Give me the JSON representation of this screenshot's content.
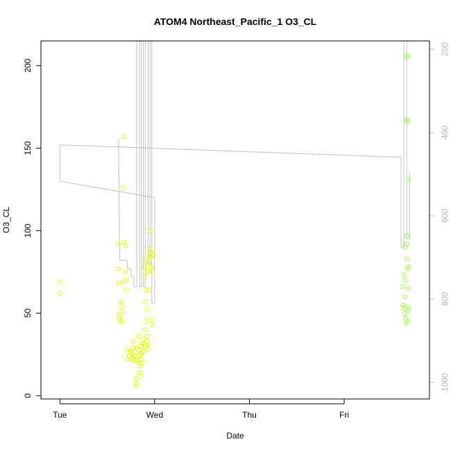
{
  "chart_data": {
    "type": "scatter",
    "title": "ATOM4 Northeast_Pacific_1 O3_CL",
    "xlabel": "Date",
    "ylabel": "O3_CL",
    "x_ticks": [
      "Tue",
      "Wed",
      "Thu",
      "Fri"
    ],
    "y_ticks": [
      "0",
      "50",
      "100",
      "150",
      "200"
    ],
    "y2_ticks": [
      "200",
      "400",
      "600",
      "800",
      "1000"
    ],
    "xlim": [
      -0.2,
      3.9
    ],
    "ylim": [
      -2,
      215
    ],
    "y2lim_reversed": [
      180,
      1040
    ],
    "grid": false,
    "colors": {
      "marker_yellow": "#e0ff00",
      "marker_lime": "#99ff33",
      "line": "#c0c0c0",
      "axis": "#000000",
      "right_axis": "#b5b5b5"
    },
    "series": [
      {
        "color": "#e0ff00",
        "points": [
          [
            0.0,
            69
          ],
          [
            0.0,
            62
          ],
          [
            0.62,
            92
          ],
          [
            0.62,
            77
          ],
          [
            0.62,
            68
          ],
          [
            0.63,
            49
          ],
          [
            0.63,
            47
          ],
          [
            0.64,
            45
          ],
          [
            0.65,
            57
          ],
          [
            0.65,
            54
          ],
          [
            0.66,
            51
          ],
          [
            0.66,
            45
          ],
          [
            0.67,
            126
          ],
          [
            0.67,
            69
          ],
          [
            0.68,
            157
          ],
          [
            0.68,
            93
          ],
          [
            0.69,
            91
          ],
          [
            0.69,
            75
          ],
          [
            0.7,
            70
          ],
          [
            0.7,
            64
          ],
          [
            0.71,
            28
          ],
          [
            0.72,
            22
          ],
          [
            0.73,
            24
          ],
          [
            0.74,
            27
          ],
          [
            0.75,
            26
          ],
          [
            0.76,
            22
          ],
          [
            0.77,
            25
          ],
          [
            0.78,
            29
          ],
          [
            0.78,
            33
          ],
          [
            0.79,
            24
          ],
          [
            0.8,
            6
          ],
          [
            0.8,
            10
          ],
          [
            0.81,
            7
          ],
          [
            0.82,
            21
          ],
          [
            0.82,
            28
          ],
          [
            0.83,
            36
          ],
          [
            0.84,
            20
          ],
          [
            0.84,
            14
          ],
          [
            0.85,
            12
          ],
          [
            0.85,
            25
          ],
          [
            0.86,
            30
          ],
          [
            0.86,
            22
          ],
          [
            0.87,
            20
          ],
          [
            0.87,
            32
          ],
          [
            0.88,
            34
          ],
          [
            0.88,
            27
          ],
          [
            0.89,
            31
          ],
          [
            0.89,
            78
          ],
          [
            0.9,
            82
          ],
          [
            0.9,
            72
          ],
          [
            0.9,
            57
          ],
          [
            0.91,
            64
          ],
          [
            0.91,
            30
          ],
          [
            0.92,
            75
          ],
          [
            0.92,
            33
          ],
          [
            0.93,
            76
          ],
          [
            0.93,
            28
          ],
          [
            0.94,
            80
          ],
          [
            0.94,
            85
          ],
          [
            0.94,
            64
          ],
          [
            0.95,
            100
          ],
          [
            0.95,
            89
          ],
          [
            0.96,
            87
          ],
          [
            0.96,
            84
          ],
          [
            0.97,
            78
          ],
          [
            0.97,
            46
          ],
          [
            0.98,
            43
          ],
          [
            0.98,
            75
          ],
          [
            0.99,
            85
          ],
          [
            0.92,
            52
          ],
          [
            0.9,
            40
          ],
          [
            0.87,
            26
          ],
          [
            0.85,
            18
          ],
          [
            0.83,
            24
          ],
          [
            0.81,
            29
          ],
          [
            0.79,
            21
          ],
          [
            0.77,
            23
          ],
          [
            0.93,
            31
          ],
          [
            0.92,
            36
          ],
          [
            0.91,
            45
          ]
        ]
      },
      {
        "color": "#99ff33",
        "points": [
          [
            3.62,
            66
          ],
          [
            3.62,
            55
          ],
          [
            3.63,
            53
          ],
          [
            3.63,
            73
          ],
          [
            3.64,
            60
          ],
          [
            3.64,
            50
          ],
          [
            3.65,
            47
          ],
          [
            3.65,
            44
          ],
          [
            3.65,
            70
          ],
          [
            3.66,
            92
          ],
          [
            3.66,
            97
          ],
          [
            3.66,
            83
          ],
          [
            3.67,
            77
          ],
          [
            3.67,
            54
          ],
          [
            3.67,
            45
          ],
          [
            3.68,
            78
          ],
          [
            3.68,
            65
          ],
          [
            3.68,
            52
          ],
          [
            3.66,
            206
          ],
          [
            3.67,
            205
          ],
          [
            3.66,
            167
          ],
          [
            3.67,
            166
          ],
          [
            3.68,
            131
          ],
          [
            3.64,
            90
          ]
        ]
      }
    ],
    "line_series": {
      "color": "#c0c0c0",
      "points": [
        [
          0.0,
          130
        ],
        [
          0.0,
          152
        ],
        [
          3.6,
          144.5
        ],
        [
          3.6,
          90
        ],
        [
          3.63,
          90
        ],
        [
          3.63,
          230
        ],
        [
          3.66,
          230
        ],
        [
          3.66,
          95
        ],
        [
          3.69,
          95
        ],
        [
          3.69,
          135
        ]
      ]
    },
    "line_series_2": {
      "color": "#c0c0c0",
      "points": [
        [
          0.0,
          130
        ],
        [
          1.0,
          120
        ],
        [
          1.0,
          56
        ],
        [
          0.97,
          56
        ],
        [
          0.97,
          230
        ],
        [
          0.95,
          230
        ],
        [
          0.95,
          80
        ],
        [
          0.93,
          80
        ],
        [
          0.93,
          230
        ],
        [
          0.9,
          230
        ],
        [
          0.9,
          66
        ],
        [
          0.88,
          66
        ],
        [
          0.88,
          230
        ],
        [
          0.86,
          230
        ],
        [
          0.86,
          66
        ],
        [
          0.84,
          66
        ],
        [
          0.84,
          230
        ],
        [
          0.81,
          230
        ],
        [
          0.81,
          66
        ],
        [
          0.78,
          66
        ],
        [
          0.78,
          72
        ],
        [
          0.75,
          72
        ],
        [
          0.75,
          77
        ],
        [
          0.71,
          77
        ],
        [
          0.71,
          82
        ],
        [
          0.63,
          82
        ],
        [
          0.62,
          156
        ]
      ]
    }
  }
}
